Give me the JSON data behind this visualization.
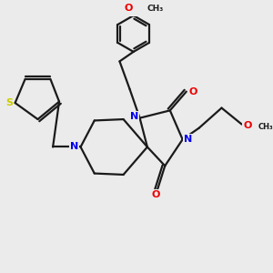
{
  "background_color": "#ebebeb",
  "bond_color": "#1a1a1a",
  "nitrogen_color": "#0000ee",
  "oxygen_color": "#ee0000",
  "sulfur_color": "#cccc00",
  "line_width": 1.6,
  "figsize": [
    3.0,
    3.0
  ],
  "dpi": 100,
  "xlim": [
    0,
    10
  ],
  "ylim": [
    0,
    10
  ]
}
